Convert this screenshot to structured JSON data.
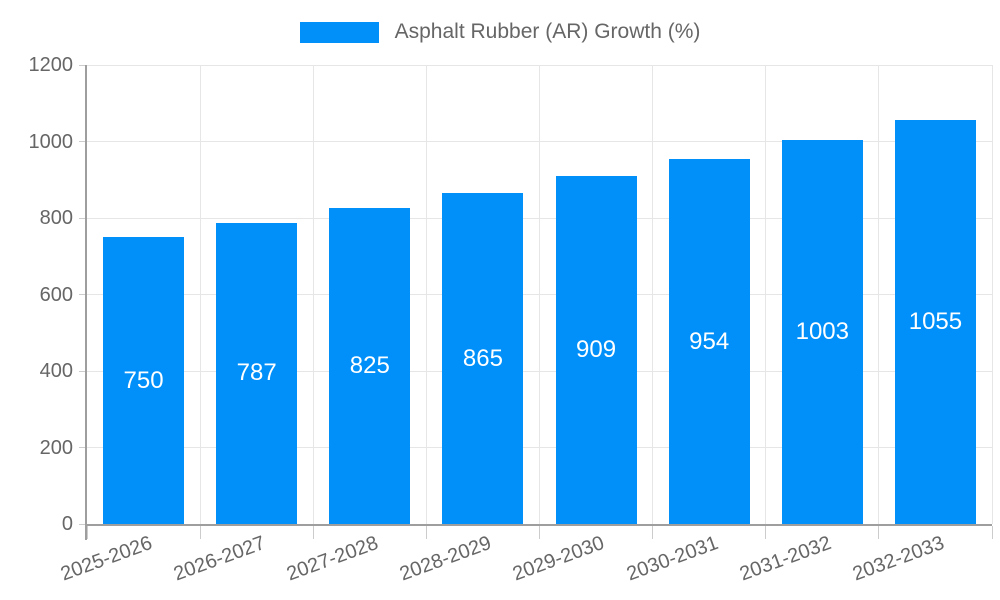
{
  "chart_data": {
    "type": "bar",
    "title": "",
    "series_name": "Asphalt Rubber (AR) Growth (%)",
    "categories": [
      "2025-2026",
      "2026-2027",
      "2027-2028",
      "2028-2029",
      "2029-2030",
      "2030-2031",
      "2031-2032",
      "2032-2033"
    ],
    "values": [
      750,
      787,
      825,
      865,
      909,
      954,
      1003,
      1055
    ],
    "xlabel": "",
    "ylabel": "",
    "ylim": [
      0,
      1200
    ],
    "yticks": [
      0,
      200,
      400,
      600,
      800,
      1000,
      1200
    ],
    "grid": true,
    "legend_position": "top",
    "value_label_position": "inside-center",
    "x_label_rotation_deg": -20
  },
  "colors": {
    "bar": "#0190FA",
    "gridline": "#E6E6E6",
    "tick": "#CCCCCC",
    "axis": "#9E9E9E",
    "tick_label": "#666666",
    "legend_label": "#666666",
    "value_label": "#FFFFFF",
    "background": "#FFFFFF"
  }
}
